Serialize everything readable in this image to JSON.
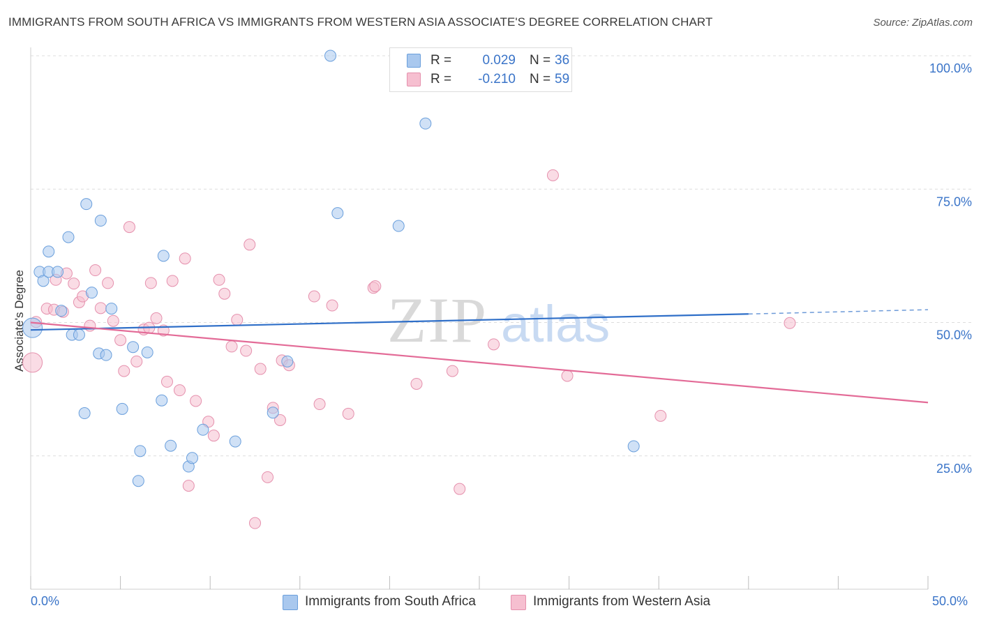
{
  "title": "IMMIGRANTS FROM SOUTH AFRICA VS IMMIGRANTS FROM WESTERN ASIA ASSOCIATE'S DEGREE CORRELATION CHART",
  "source": "Source: ZipAtlas.com",
  "watermark": {
    "zip": "ZIP",
    "atlas": "atlas"
  },
  "legend_top": {
    "rows": [
      {
        "r_label": "R =",
        "r_value": "0.029",
        "n_label": "N =",
        "n_value": "36"
      },
      {
        "r_label": "R =",
        "r_value": "-0.210",
        "n_label": "N =",
        "n_value": "59"
      }
    ]
  },
  "legend_bottom": {
    "items": [
      {
        "label": "Immigrants from South Africa"
      },
      {
        "label": "Immigrants from Western Asia"
      }
    ]
  },
  "axis": {
    "x_min_label": "0.0%",
    "x_max_label": "50.0%"
  },
  "colors": {
    "blue_fill": "#a9c8ee",
    "blue_stroke": "#6a9fdc",
    "blue_line": "#2f6fc8",
    "pink_fill": "#f6bfd0",
    "pink_stroke": "#e590ad",
    "pink_line": "#e36b97",
    "grid": "#dddddd",
    "axis_text": "#3a74c8"
  },
  "chart_data": {
    "type": "scatter",
    "title": "IMMIGRANTS FROM SOUTH AFRICA VS IMMIGRANTS FROM WESTERN ASIA ASSOCIATE'S DEGREE CORRELATION CHART",
    "xlabel": "",
    "ylabel": "Associate's Degree",
    "xlim": [
      0,
      50
    ],
    "ylim": [
      0,
      100
    ],
    "y_ticks": [
      {
        "value": 25,
        "label": "25.0%"
      },
      {
        "value": 50,
        "label": "50.0%"
      },
      {
        "value": 75,
        "label": "75.0%"
      },
      {
        "value": 100,
        "label": "100.0%"
      }
    ],
    "x_ticks": [
      0,
      5,
      10,
      15,
      20,
      25,
      30,
      35,
      40,
      45,
      50
    ],
    "series": [
      {
        "name": "Immigrants from South Africa",
        "color": "blue",
        "r": 0.029,
        "n": 36,
        "trend": {
          "x0": 0,
          "y0": 48.6,
          "x1": 40,
          "y1": 51.6,
          "dash_to_x": 50,
          "dash_to_y": 52.4
        },
        "points": [
          {
            "x": 0.1,
            "y": 49.0,
            "big": true
          },
          {
            "x": 0.5,
            "y": 59.5
          },
          {
            "x": 0.7,
            "y": 57.8
          },
          {
            "x": 1.0,
            "y": 63.3
          },
          {
            "x": 1.0,
            "y": 59.5
          },
          {
            "x": 1.5,
            "y": 59.5
          },
          {
            "x": 1.7,
            "y": 52.2
          },
          {
            "x": 2.1,
            "y": 66.0
          },
          {
            "x": 2.3,
            "y": 47.7
          },
          {
            "x": 2.7,
            "y": 47.7
          },
          {
            "x": 3.0,
            "y": 33.0
          },
          {
            "x": 3.1,
            "y": 72.2
          },
          {
            "x": 3.4,
            "y": 55.6
          },
          {
            "x": 3.8,
            "y": 44.2
          },
          {
            "x": 3.9,
            "y": 69.1
          },
          {
            "x": 4.2,
            "y": 43.9
          },
          {
            "x": 4.5,
            "y": 52.6
          },
          {
            "x": 5.1,
            "y": 33.8
          },
          {
            "x": 5.7,
            "y": 45.4
          },
          {
            "x": 6.0,
            "y": 20.3
          },
          {
            "x": 6.1,
            "y": 25.9
          },
          {
            "x": 6.5,
            "y": 44.4
          },
          {
            "x": 7.3,
            "y": 35.4
          },
          {
            "x": 7.4,
            "y": 62.5
          },
          {
            "x": 7.8,
            "y": 26.9
          },
          {
            "x": 8.8,
            "y": 23.0
          },
          {
            "x": 9.0,
            "y": 24.6
          },
          {
            "x": 9.6,
            "y": 29.9
          },
          {
            "x": 11.4,
            "y": 27.7
          },
          {
            "x": 13.5,
            "y": 33.1
          },
          {
            "x": 14.3,
            "y": 42.7
          },
          {
            "x": 16.7,
            "y": 100.0
          },
          {
            "x": 17.1,
            "y": 70.5
          },
          {
            "x": 20.5,
            "y": 68.1
          },
          {
            "x": 22.0,
            "y": 87.3
          },
          {
            "x": 33.6,
            "y": 26.8
          }
        ]
      },
      {
        "name": "Immigrants from Western Asia",
        "color": "pink",
        "r": -0.21,
        "n": 59,
        "trend": {
          "x0": 0,
          "y0": 50.0,
          "x1": 50,
          "y1": 35.0
        },
        "points": [
          {
            "x": 0.1,
            "y": 42.5,
            "big": true
          },
          {
            "x": 0.3,
            "y": 50.1
          },
          {
            "x": 0.9,
            "y": 52.6
          },
          {
            "x": 1.3,
            "y": 52.4
          },
          {
            "x": 1.4,
            "y": 58.0
          },
          {
            "x": 1.8,
            "y": 52.0
          },
          {
            "x": 2.0,
            "y": 59.2
          },
          {
            "x": 2.4,
            "y": 57.3
          },
          {
            "x": 2.7,
            "y": 53.8
          },
          {
            "x": 2.9,
            "y": 54.9
          },
          {
            "x": 3.3,
            "y": 49.4
          },
          {
            "x": 3.6,
            "y": 59.8
          },
          {
            "x": 3.9,
            "y": 52.7
          },
          {
            "x": 4.3,
            "y": 57.4
          },
          {
            "x": 4.6,
            "y": 50.3
          },
          {
            "x": 5.0,
            "y": 46.7
          },
          {
            "x": 5.2,
            "y": 40.9
          },
          {
            "x": 5.5,
            "y": 67.9
          },
          {
            "x": 5.9,
            "y": 42.7
          },
          {
            "x": 6.3,
            "y": 48.7
          },
          {
            "x": 6.6,
            "y": 49.0
          },
          {
            "x": 6.7,
            "y": 57.4
          },
          {
            "x": 7.0,
            "y": 50.8
          },
          {
            "x": 7.4,
            "y": 48.5
          },
          {
            "x": 7.6,
            "y": 38.9
          },
          {
            "x": 7.9,
            "y": 57.8
          },
          {
            "x": 8.3,
            "y": 37.3
          },
          {
            "x": 8.6,
            "y": 62.0
          },
          {
            "x": 8.8,
            "y": 19.4
          },
          {
            "x": 9.2,
            "y": 35.3
          },
          {
            "x": 9.9,
            "y": 31.4
          },
          {
            "x": 10.2,
            "y": 28.8
          },
          {
            "x": 10.5,
            "y": 58.0
          },
          {
            "x": 10.8,
            "y": 55.4
          },
          {
            "x": 11.2,
            "y": 45.5
          },
          {
            "x": 11.5,
            "y": 50.5
          },
          {
            "x": 12.0,
            "y": 44.7
          },
          {
            "x": 12.2,
            "y": 64.6
          },
          {
            "x": 12.5,
            "y": 12.4
          },
          {
            "x": 12.8,
            "y": 41.3
          },
          {
            "x": 13.2,
            "y": 21.0
          },
          {
            "x": 13.5,
            "y": 34.0
          },
          {
            "x": 13.9,
            "y": 31.7
          },
          {
            "x": 14.0,
            "y": 42.9
          },
          {
            "x": 14.4,
            "y": 42.0
          },
          {
            "x": 15.8,
            "y": 54.9
          },
          {
            "x": 16.1,
            "y": 34.7
          },
          {
            "x": 16.8,
            "y": 53.2
          },
          {
            "x": 17.7,
            "y": 32.9
          },
          {
            "x": 19.1,
            "y": 56.5
          },
          {
            "x": 19.2,
            "y": 56.8
          },
          {
            "x": 21.5,
            "y": 38.5
          },
          {
            "x": 23.5,
            "y": 40.9
          },
          {
            "x": 23.9,
            "y": 18.8
          },
          {
            "x": 25.8,
            "y": 45.9
          },
          {
            "x": 29.1,
            "y": 77.6
          },
          {
            "x": 29.9,
            "y": 40.0
          },
          {
            "x": 35.1,
            "y": 32.5
          },
          {
            "x": 42.3,
            "y": 49.9
          }
        ]
      }
    ]
  }
}
